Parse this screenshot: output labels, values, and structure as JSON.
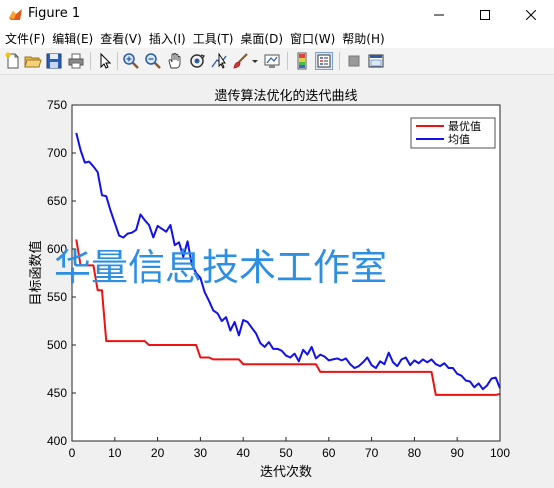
{
  "window": {
    "title": "Figure 1",
    "icon": "matlab-figure-icon",
    "controls": [
      "minimize-icon",
      "maximize-icon",
      "close-icon"
    ]
  },
  "menu": [
    "文件(F)",
    "编辑(E)",
    "查看(V)",
    "插入(I)",
    "工具(T)",
    "桌面(D)",
    "窗口(W)",
    "帮助(H)"
  ],
  "toolbar": {
    "buttons": [
      "new-figure-icon",
      "open-file-icon",
      "save-icon",
      "print-icon",
      "edit-plot-icon",
      "zoom-in-icon",
      "zoom-out-icon",
      "pan-icon",
      "rotate-3d-icon",
      "data-cursor-icon",
      "brush-icon",
      "brush-dropdown-icon",
      "link-plot-icon",
      "insert-colorbar-icon",
      "insert-legend-icon",
      "hide-plot-tools-icon",
      "show-plot-tools-icon"
    ]
  },
  "watermark": "华量信息技术工作室",
  "chart_data": {
    "type": "line",
    "title": "遗传算法优化的迭代曲线",
    "xlabel": "迭代次数",
    "ylabel": "目标函数值",
    "xlim": [
      0,
      100
    ],
    "ylim": [
      400,
      750
    ],
    "xticks": [
      0,
      10,
      20,
      30,
      40,
      50,
      60,
      70,
      80,
      90,
      100
    ],
    "yticks": [
      400,
      450,
      500,
      550,
      600,
      650,
      700,
      750
    ],
    "grid": false,
    "legend_position": "top-right",
    "x": [
      1,
      2,
      3,
      4,
      5,
      6,
      7,
      8,
      9,
      10,
      11,
      12,
      13,
      14,
      15,
      16,
      17,
      18,
      19,
      20,
      21,
      22,
      23,
      24,
      25,
      26,
      27,
      28,
      29,
      30,
      31,
      32,
      33,
      34,
      35,
      36,
      37,
      38,
      39,
      40,
      41,
      42,
      43,
      44,
      45,
      46,
      47,
      48,
      49,
      50,
      51,
      52,
      53,
      54,
      55,
      56,
      57,
      58,
      59,
      60,
      61,
      62,
      63,
      64,
      65,
      66,
      67,
      68,
      69,
      70,
      71,
      72,
      73,
      74,
      75,
      76,
      77,
      78,
      79,
      80,
      81,
      82,
      83,
      84,
      85,
      86,
      87,
      88,
      89,
      90,
      91,
      92,
      93,
      94,
      95,
      96,
      97,
      98,
      99,
      100
    ],
    "series": [
      {
        "name": "最优值",
        "color": "#ee1111",
        "values": [
          610,
          583,
          583,
          583,
          583,
          557,
          557,
          504,
          504,
          504,
          504,
          504,
          504,
          504,
          504,
          504,
          504,
          500,
          500,
          500,
          500,
          500,
          500,
          500,
          500,
          500,
          500,
          500,
          500,
          487,
          487,
          487,
          485,
          485,
          485,
          485,
          485,
          485,
          485,
          480,
          480,
          480,
          480,
          480,
          480,
          480,
          480,
          480,
          480,
          480,
          480,
          480,
          480,
          480,
          480,
          480,
          480,
          472,
          472,
          472,
          472,
          472,
          472,
          472,
          472,
          472,
          472,
          472,
          472,
          472,
          472,
          472,
          472,
          472,
          472,
          472,
          472,
          472,
          472,
          472,
          472,
          472,
          472,
          472,
          448,
          448,
          448,
          448,
          448,
          448,
          448,
          448,
          448,
          448,
          448,
          448,
          448,
          448,
          448,
          449
        ]
      },
      {
        "name": "均值",
        "color": "#1111ee",
        "values": [
          721,
          703,
          690,
          691,
          686,
          680,
          656,
          655,
          640,
          627,
          614,
          612,
          616,
          617,
          620,
          636,
          630,
          625,
          612,
          624,
          621,
          618,
          625,
          604,
          607,
          592,
          608,
          584,
          575,
          570,
          555,
          546,
          536,
          533,
          525,
          529,
          515,
          524,
          510,
          526,
          524,
          518,
          512,
          502,
          498,
          503,
          496,
          496,
          494,
          489,
          487,
          491,
          483,
          495,
          490,
          498,
          486,
          490,
          488,
          484,
          485,
          486,
          484,
          486,
          480,
          476,
          478,
          482,
          487,
          479,
          476,
          483,
          480,
          492,
          482,
          478,
          485,
          487,
          479,
          484,
          481,
          485,
          482,
          485,
          480,
          478,
          481,
          476,
          476,
          470,
          468,
          463,
          462,
          456,
          460,
          454,
          458,
          465,
          466,
          455
        ]
      }
    ]
  }
}
